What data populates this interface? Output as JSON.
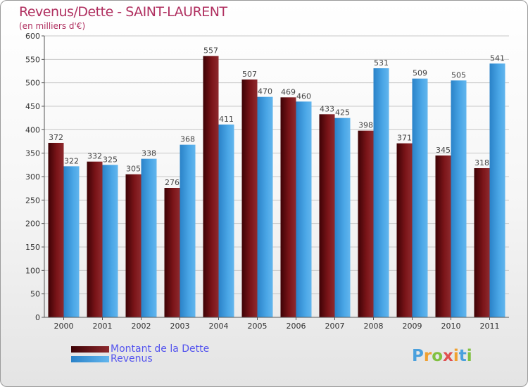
{
  "chart_title": "Revenus/Dette - SAINT-LAURENT",
  "unit_label": "(en milliers d'€)",
  "logo_text": "Proxiti",
  "colors": {
    "dette": "#6e0f12",
    "revenus": "#4aa6e6",
    "title": "#b03060",
    "legend_text": "#5555ee"
  },
  "chart_data": {
    "type": "bar",
    "categories": [
      "2000",
      "2001",
      "2002",
      "2003",
      "2004",
      "2005",
      "2006",
      "2007",
      "2008",
      "2009",
      "2010",
      "2011"
    ],
    "series": [
      {
        "name": "Montant de la Dette",
        "values": [
          372,
          332,
          305,
          276,
          557,
          507,
          469,
          433,
          398,
          371,
          345,
          318
        ]
      },
      {
        "name": "Revenus",
        "values": [
          322,
          325,
          338,
          368,
          411,
          470,
          460,
          425,
          531,
          509,
          505,
          541
        ]
      }
    ],
    "ylim": [
      0,
      600
    ],
    "yticks": [
      0,
      50,
      100,
      150,
      200,
      250,
      300,
      350,
      400,
      450,
      500,
      550,
      600
    ],
    "grid": true,
    "legend": "bottom-left"
  }
}
